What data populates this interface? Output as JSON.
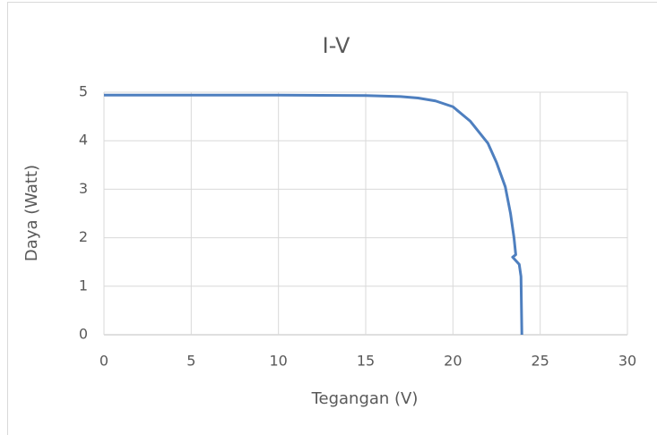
{
  "chart_data": {
    "type": "line",
    "title": "I-V",
    "x_label": "Tegangan (V)",
    "y_label": "Daya (Watt)",
    "x": [
      0,
      10,
      15,
      17,
      18,
      19,
      20,
      21,
      22,
      22.5,
      23,
      23.3,
      23.5,
      23.6,
      23.42,
      23.8,
      23.9,
      23.95
    ],
    "series": [
      {
        "name": "I-V",
        "color": "#4e7fbf",
        "values": [
          4.94,
          4.94,
          4.93,
          4.91,
          4.88,
          4.82,
          4.7,
          4.4,
          3.95,
          3.55,
          3.05,
          2.5,
          2.0,
          1.65,
          1.6,
          1.45,
          1.2,
          0
        ]
      }
    ],
    "xlim": [
      0,
      30
    ],
    "xticks": [
      0,
      5,
      10,
      15,
      20,
      25,
      30
    ],
    "ylim": [
      0,
      5
    ],
    "yticks": [
      0,
      1,
      2,
      3,
      4,
      5
    ],
    "grid": true
  }
}
